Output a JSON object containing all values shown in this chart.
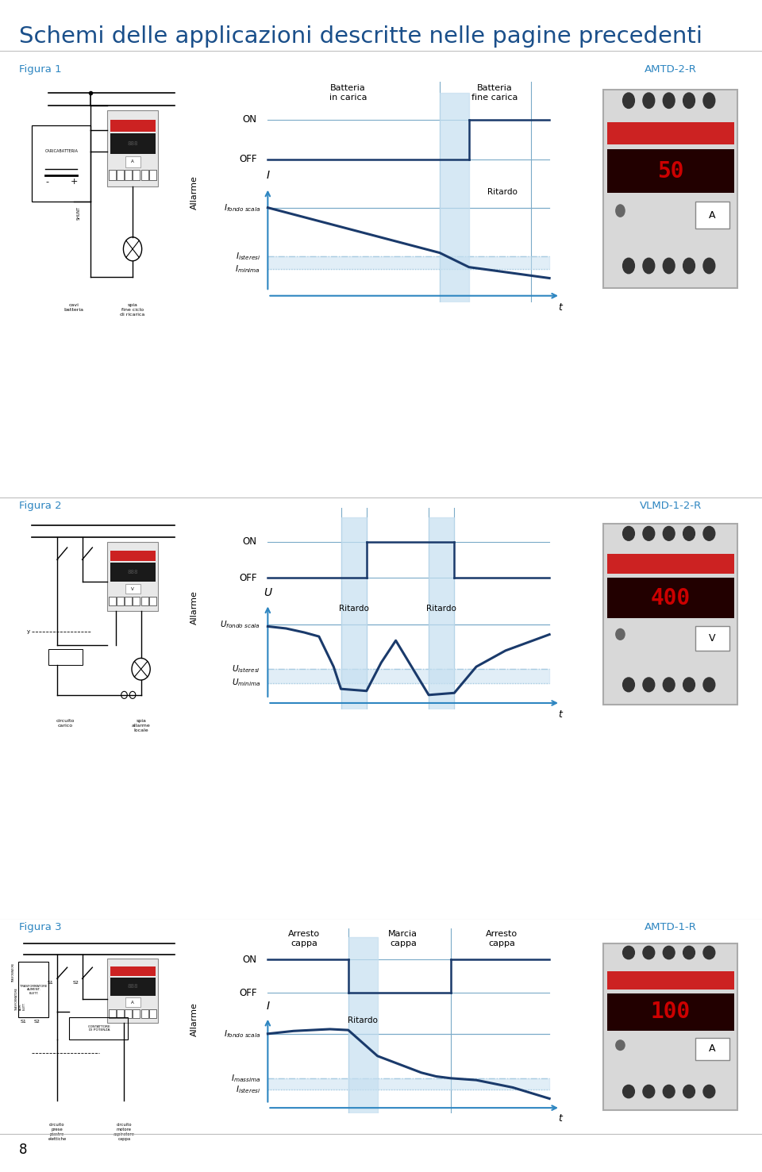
{
  "title": "Schemi delle applicazioni descritte nelle pagine precedenti",
  "title_color": "#1a4f8a",
  "title_fontsize": 21,
  "bg_color": "#ffffff",
  "section_label_color": "#2e86c1",
  "dark_blue": "#1a3a6b",
  "light_blue_fill": "#c5dff0",
  "arrow_blue": "#2e86c1",
  "grid_line_color": "#7aaac8",
  "fig1_label": "Figura 1",
  "fig2_label": "Figura 2",
  "fig3_label": "Figura 3",
  "amtd2r_label": "AMTD-2-R",
  "vlmd_label": "VLMD-1-2-R",
  "amtd1r_label": "AMTD-1-R",
  "alarm_label": "Allarme",
  "on_label": "ON",
  "off_label": "OFF",
  "t_label": "t",
  "fig1_top_label1": "Batteria\nin carica",
  "fig1_top_label2": "Batteria\nfine carica",
  "fig1_ritardo": "Ritardo",
  "fig2_ritardo1": "Ritardo",
  "fig2_ritardo2": "Ritardo",
  "fig3_top_label1": "Arresto\ncappa",
  "fig3_top_label2": "Marcia\ncappa",
  "fig3_top_label3": "Arresto\ncappa",
  "fig3_ritardo": "Ritardo",
  "cavi_batteria": "cavi\nbatteria",
  "spia_fine_ciclo": "spia\nfine ciclo\ndi ricarica",
  "circuito_carico": "circuito\ncarico",
  "spia_allarme": "spia\nallarme\nlocale",
  "circuito_prese": "circuito\nprese\npiastre\nelettiche",
  "circuito_motore": "circuito\nmotore\naspiratore\ncappa",
  "caricabatteria": "CARICABATTERIA",
  "shunt": "SHUNT",
  "contattore": "CONTATTORE\nDI POTENZA",
  "trasformatore": "TRASFORMATORE\nALIMENT.\nELETT.",
  "page_number": "8"
}
